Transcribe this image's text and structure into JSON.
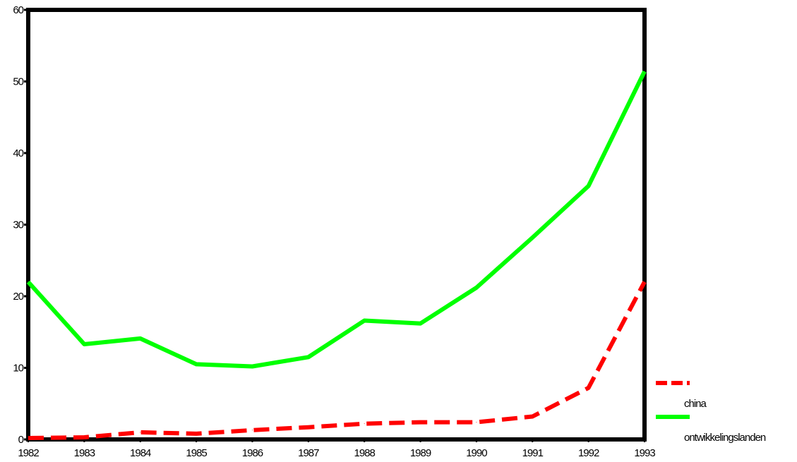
{
  "chart_data": {
    "type": "line",
    "title": "",
    "xlabel": "",
    "ylabel": "",
    "x": [
      "1982",
      "1983",
      "1984",
      "1985",
      "1986",
      "1987",
      "1988",
      "1989",
      "1990",
      "1991",
      "1992",
      "1993"
    ],
    "ylim": [
      0,
      60
    ],
    "yticks": [
      "0",
      "10",
      "20",
      "30",
      "40",
      "50",
      "60"
    ],
    "grid": false,
    "legend_position": "bottom-right",
    "series": [
      {
        "name": "china",
        "color": "#ff0000",
        "style": "dashed",
        "values": [
          0.2,
          0.3,
          1.0,
          0.8,
          1.3,
          1.7,
          2.2,
          2.4,
          2.4,
          3.2,
          7.2,
          22.0
        ]
      },
      {
        "name": "ontwikkelingslanden",
        "color": "#00ff00",
        "style": "solid",
        "values": [
          22.0,
          13.3,
          14.1,
          10.5,
          10.2,
          11.5,
          16.6,
          16.2,
          21.2,
          28.2,
          35.4,
          51.4
        ]
      }
    ]
  }
}
